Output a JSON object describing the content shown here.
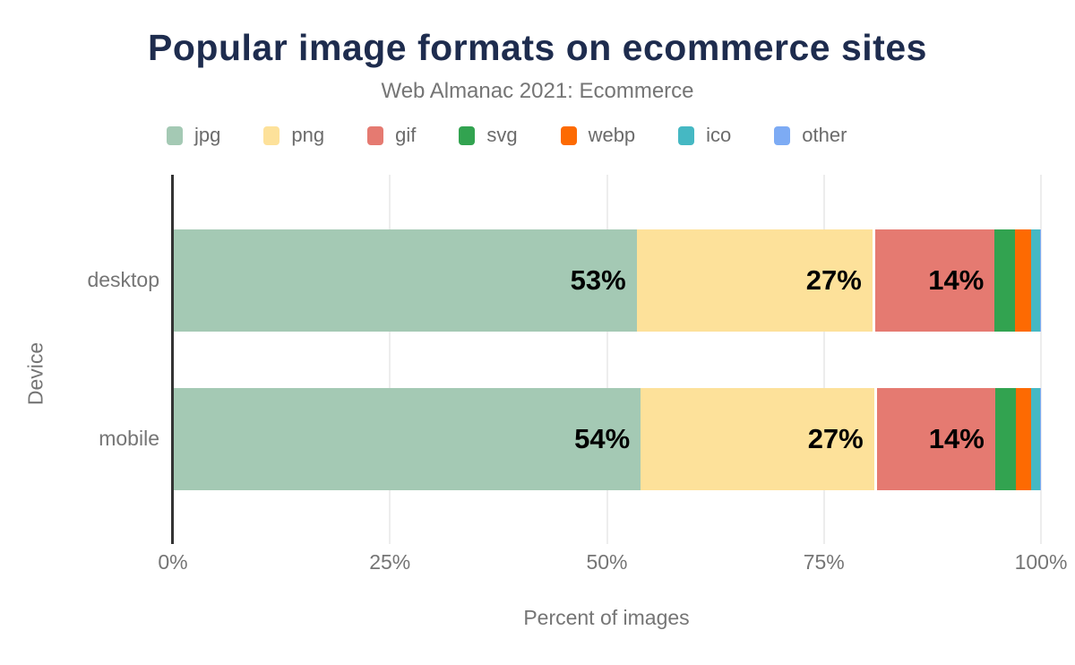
{
  "title": "Popular image formats on ecommerce sites",
  "subtitle": "Web Almanac 2021: Ecommerce",
  "axis": {
    "xlabel": "Percent of images",
    "ylabel": "Device"
  },
  "colors": {
    "title": "#1e2c4e",
    "muted_text": "#757575",
    "legend_text": "#6b6b6b",
    "axis_line": "#333333",
    "gridline": "#ededed",
    "background": "#ffffff",
    "value_label": "#000000"
  },
  "chart_data": {
    "type": "bar",
    "stacked": true,
    "orientation": "horizontal",
    "title": "Popular image formats on ecommerce sites",
    "subtitle": "Web Almanac 2021: Ecommerce",
    "xlabel": "Percent of images",
    "ylabel": "Device",
    "xlim": [
      0,
      100
    ],
    "x_ticks": [
      {
        "value": 0,
        "label": "0%"
      },
      {
        "value": 25,
        "label": "25%"
      },
      {
        "value": 50,
        "label": "50%"
      },
      {
        "value": 75,
        "label": "75%"
      },
      {
        "value": 100,
        "label": "100%"
      }
    ],
    "grid": "vertical",
    "legend_position": "top",
    "categories": [
      "desktop",
      "mobile"
    ],
    "series": [
      {
        "name": "jpg",
        "color": "#a4c9b4",
        "values": [
          53,
          54
        ],
        "labels": [
          "53%",
          "54%"
        ]
      },
      {
        "name": "png",
        "color": "#fde19a",
        "values": [
          27,
          27
        ],
        "labels": [
          "27%",
          "27%"
        ]
      },
      {
        "name": "gif",
        "color": "#e57a71",
        "values": [
          14,
          14
        ],
        "labels": [
          "14%",
          "14%"
        ],
        "white_gap_before": true
      },
      {
        "name": "svg",
        "color": "#32a350",
        "values": [
          2.3,
          2.4
        ],
        "labels": [
          "",
          ""
        ]
      },
      {
        "name": "webp",
        "color": "#fd6a02",
        "values": [
          1.9,
          1.8
        ],
        "labels": [
          "",
          ""
        ]
      },
      {
        "name": "ico",
        "color": "#45b8c3",
        "values": [
          1.0,
          1.0
        ],
        "labels": [
          "",
          ""
        ]
      },
      {
        "name": "other",
        "color": "#7dabf4",
        "values": [
          0.1,
          0.1
        ],
        "labels": [
          "",
          ""
        ]
      }
    ]
  }
}
